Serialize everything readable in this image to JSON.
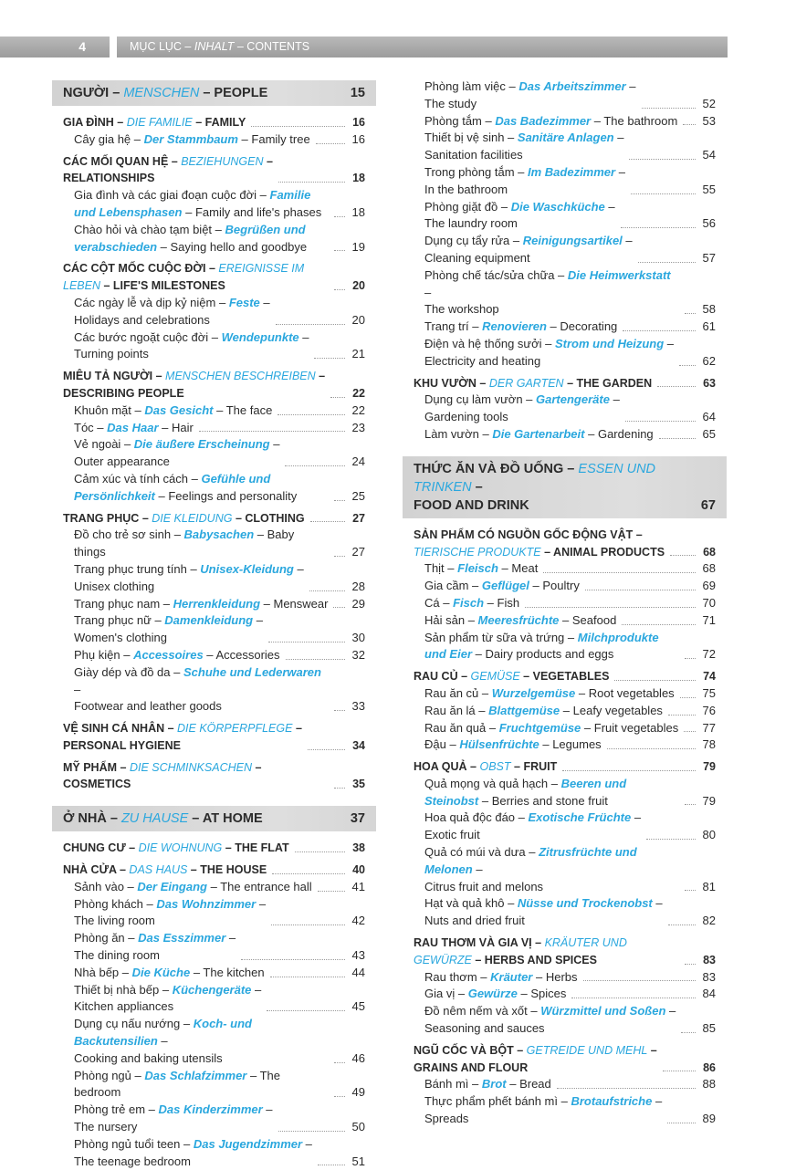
{
  "header": {
    "page_number": "4",
    "title_vi": "MỤC LỤC",
    "title_de": "INHALT",
    "title_en": "CONTENTS"
  },
  "colors": {
    "accent": "#2aa7de",
    "band": "#d6d6d6",
    "topbar": "#a8a8a8"
  },
  "columns": [
    {
      "entries": [
        {
          "kind": "section",
          "vi": "NGƯỜI",
          "de": "MENSCHEN",
          "en": "PEOPLE",
          "page": "15"
        },
        {
          "kind": "cat",
          "vi": "GIA ĐÌNH",
          "de": "DIE FAMILIE",
          "en": "FAMILY",
          "page": "16"
        },
        {
          "kind": "sub",
          "vi": "Cây gia hệ",
          "de": "Der Stammbaum",
          "en": "Family tree",
          "page": "16"
        },
        {
          "kind": "cat",
          "vi": "CÁC MỐI QUAN HỆ",
          "de": "BEZIEHUNGEN",
          "en": "RELATIONSHIPS",
          "page": "18"
        },
        {
          "kind": "sub",
          "vi": "Gia đình và các giai đoạn cuộc đời",
          "de": "Familie und Lebensphasen",
          "en": "Family and life's phases",
          "page": "18"
        },
        {
          "kind": "sub",
          "vi": "Chào hỏi và chào tạm biệt",
          "de": "Begrüßen und verabschieden",
          "en": "Saying hello and goodbye",
          "page": "19"
        },
        {
          "kind": "cat",
          "vi": "CÁC CỘT MỐC CUỘC ĐỜI",
          "de": "EREIGNISSE IM LEBEN",
          "en": "LIFE'S MILESTONES",
          "page": "20"
        },
        {
          "kind": "sub",
          "vi": "Các ngày lễ và dịp kỷ niệm",
          "de": "Feste",
          "en": "Holidays and celebrations",
          "page": "20"
        },
        {
          "kind": "sub",
          "vi": "Các bước ngoặt cuộc đời",
          "de": "Wendepunkte",
          "en": "Turning points",
          "page": "21"
        },
        {
          "kind": "cat",
          "vi": "MIÊU TẢ NGƯỜI",
          "de": "MENSCHEN BESCHREIBEN",
          "en": "DESCRIBING PEOPLE",
          "page": "22"
        },
        {
          "kind": "sub",
          "vi": "Khuôn mặt",
          "de": "Das Gesicht",
          "en": "The face",
          "page": "22"
        },
        {
          "kind": "sub",
          "vi": "Tóc",
          "de": "Das Haar",
          "en": "Hair",
          "page": "23"
        },
        {
          "kind": "sub",
          "vi": "Vẻ ngoài",
          "de": "Die äußere Erscheinung",
          "en": "Outer appearance",
          "page": "24"
        },
        {
          "kind": "sub",
          "vi": "Cảm xúc và tính cách",
          "de": "Gefühle und Persönlichkeit",
          "en": "Feelings and personality",
          "page": "25"
        },
        {
          "kind": "cat",
          "vi": "TRANG PHỤC",
          "de": "DIE KLEIDUNG",
          "en": "CLOTHING",
          "page": "27"
        },
        {
          "kind": "sub",
          "vi": "Đồ cho trẻ sơ sinh",
          "de": "Babysachen",
          "en": "Baby things",
          "page": "27"
        },
        {
          "kind": "sub",
          "vi": "Trang phục trung tính",
          "de": "Unisex-Kleidung",
          "en": "Unisex clothing",
          "page": "28"
        },
        {
          "kind": "sub",
          "vi": "Trang phục nam",
          "de": "Herrenkleidung",
          "en": "Menswear",
          "page": "29"
        },
        {
          "kind": "sub",
          "vi": "Trang phục nữ",
          "de": "Damenkleidung",
          "en": "Women's clothing",
          "page": "30"
        },
        {
          "kind": "sub",
          "vi": "Phụ kiện",
          "de": "Accessoires",
          "en": "Accessories",
          "page": "32"
        },
        {
          "kind": "sub",
          "vi": "Giày dép và đồ da",
          "de": "Schuhe und Lederwaren",
          "en": "Footwear and leather goods",
          "page": "33"
        },
        {
          "kind": "cat",
          "vi": "VỆ SINH CÁ NHÂN",
          "de": "DIE KÖRPERPFLEGE",
          "en": "PERSONAL HYGIENE",
          "page": "34"
        },
        {
          "kind": "cat",
          "vi": "MỸ PHẨM",
          "de": "DIE SCHMINKSACHEN",
          "en": "COSMETICS",
          "page": "35"
        },
        {
          "kind": "section",
          "vi": "Ở NHÀ",
          "de": "ZU HAUSE",
          "en": "AT HOME",
          "page": "37"
        },
        {
          "kind": "cat",
          "vi": "CHUNG CƯ",
          "de": "DIE WOHNUNG",
          "en": "THE FLAT",
          "page": "38"
        },
        {
          "kind": "cat",
          "vi": "NHÀ CỬA",
          "de": "DAS HAUS",
          "en": "THE HOUSE",
          "page": "40"
        },
        {
          "kind": "sub",
          "vi": "Sảnh vào",
          "de": "Der Eingang",
          "en": "The entrance hall",
          "page": "41"
        },
        {
          "kind": "sub",
          "vi": "Phòng khách",
          "de": "Das Wohnzimmer",
          "en": "The living room",
          "page": "42"
        },
        {
          "kind": "sub",
          "vi": "Phòng ăn",
          "de": "Das Esszimmer",
          "en": "The dining room",
          "page": "43"
        },
        {
          "kind": "sub",
          "vi": "Nhà bếp",
          "de": "Die Küche",
          "en": "The kitchen",
          "page": "44"
        },
        {
          "kind": "sub",
          "vi": "Thiết bị nhà bếp",
          "de": "Küchengeräte",
          "en": "Kitchen appliances",
          "page": "45"
        },
        {
          "kind": "sub",
          "vi": "Dụng cụ nấu nướng",
          "de": "Koch- und Backutensilien",
          "en": "Cooking and baking utensils",
          "page": "46"
        },
        {
          "kind": "sub",
          "vi": "Phòng ngủ",
          "de": "Das Schlafzimmer",
          "en": "The bedroom",
          "page": "49"
        },
        {
          "kind": "sub",
          "vi": "Phòng trẻ em",
          "de": "Das Kinderzimmer",
          "en": "The nursery",
          "page": "50"
        },
        {
          "kind": "sub",
          "vi": "Phòng ngủ tuổi teen",
          "de": "Das Jugendzimmer",
          "en": "The teenage bedroom",
          "page": "51"
        }
      ]
    },
    {
      "entries": [
        {
          "kind": "sub",
          "vi": "Phòng làm việc",
          "de": "Das Arbeitszimmer",
          "en": "The study",
          "page": "52"
        },
        {
          "kind": "sub",
          "vi": "Phòng tắm",
          "de": "Das Badezimmer",
          "en": "The bathroom",
          "page": "53"
        },
        {
          "kind": "sub",
          "vi": "Thiết bị vệ sinh",
          "de": "Sanitäre Anlagen",
          "en": "Sanitation facilities",
          "page": "54"
        },
        {
          "kind": "sub",
          "vi": "Trong phòng tắm",
          "de": "Im Badezimmer",
          "en": "In the bathroom",
          "page": "55"
        },
        {
          "kind": "sub",
          "vi": "Phòng giặt đồ",
          "de": "Die Waschküche",
          "en": "The laundry room",
          "page": "56"
        },
        {
          "kind": "sub",
          "vi": "Dụng cụ tẩy rửa",
          "de": "Reinigungsartikel",
          "en": "Cleaning equipment",
          "page": "57"
        },
        {
          "kind": "sub",
          "vi": "Phòng chế tác/sửa chữa",
          "de": "Die Heimwerkstatt",
          "en": "The workshop",
          "page": "58"
        },
        {
          "kind": "sub",
          "vi": "Trang trí",
          "de": "Renovieren",
          "en": "Decorating",
          "page": "61"
        },
        {
          "kind": "sub",
          "vi": "Điện và hệ thống sưởi",
          "de": "Strom und Heizung",
          "en": "Electricity and heating",
          "page": "62"
        },
        {
          "kind": "cat",
          "vi": "KHU VƯỜN",
          "de": "DER GARTEN",
          "en": "THE GARDEN",
          "page": "63"
        },
        {
          "kind": "sub",
          "vi": "Dụng cụ làm vườn",
          "de": "Gartengeräte",
          "en": "Gardening tools",
          "page": "64"
        },
        {
          "kind": "sub",
          "vi": "Làm vườn",
          "de": "Die Gartenarbeit",
          "en": "Gardening",
          "page": "65"
        },
        {
          "kind": "section",
          "vi": "THỨC ĂN VÀ ĐỒ UỐNG",
          "de": "ESSEN UND TRINKEN",
          "en": "FOOD AND DRINK",
          "page": "67"
        },
        {
          "kind": "cat",
          "vi": "SẢN PHẨM CÓ NGUỒN GỐC ĐỘNG VẬT",
          "de": "TIERISCHE PRODUKTE",
          "en": "ANIMAL PRODUCTS",
          "page": "68"
        },
        {
          "kind": "sub",
          "vi": "Thịt",
          "de": "Fleisch",
          "en": "Meat",
          "page": "68"
        },
        {
          "kind": "sub",
          "vi": "Gia cầm",
          "de": "Geflügel",
          "en": "Poultry",
          "page": "69"
        },
        {
          "kind": "sub",
          "vi": "Cá",
          "de": "Fisch",
          "en": "Fish",
          "page": "70"
        },
        {
          "kind": "sub",
          "vi": "Hải sản",
          "de": "Meeresfrüchte",
          "en": "Seafood",
          "page": "71"
        },
        {
          "kind": "sub",
          "vi": "Sản phẩm từ sữa và trứng",
          "de": "Milchprodukte und Eier",
          "en": "Dairy products and eggs",
          "page": "72"
        },
        {
          "kind": "cat",
          "vi": "RAU CỦ",
          "de": "GEMÜSE",
          "en": "VEGETABLES",
          "page": "74"
        },
        {
          "kind": "sub",
          "vi": "Rau ăn củ",
          "de": "Wurzelgemüse",
          "en": "Root vegetables",
          "page": "75"
        },
        {
          "kind": "sub",
          "vi": "Rau ăn lá",
          "de": "Blattgemüse",
          "en": "Leafy vegetables",
          "page": "76"
        },
        {
          "kind": "sub",
          "vi": "Rau ăn quả",
          "de": "Fruchtgemüse",
          "en": "Fruit vegetables",
          "page": "77"
        },
        {
          "kind": "sub",
          "vi": "Đậu",
          "de": "Hülsenfrüchte",
          "en": "Legumes",
          "page": "78"
        },
        {
          "kind": "cat",
          "vi": "HOA QUẢ",
          "de": "OBST",
          "en": "FRUIT",
          "page": "79"
        },
        {
          "kind": "sub",
          "vi": "Quả mọng và quả hạch",
          "de": "Beeren und Steinobst",
          "en": "Berries and stone fruit",
          "page": "79"
        },
        {
          "kind": "sub",
          "vi": "Hoa quả độc đáo",
          "de": "Exotische Früchte",
          "en": "Exotic fruit",
          "page": "80"
        },
        {
          "kind": "sub",
          "vi": "Quả có múi và dưa",
          "de": "Zitrusfrüchte und Melonen",
          "en": "Citrus fruit and melons",
          "page": "81"
        },
        {
          "kind": "sub",
          "vi": "Hạt và quả khô",
          "de": "Nüsse und Trockenobst",
          "en": "Nuts and dried fruit",
          "page": "82"
        },
        {
          "kind": "cat",
          "vi": "RAU THƠM VÀ GIA VỊ",
          "de": "KRÄUTER UND GEWÜRZE",
          "en": "HERBS AND SPICES",
          "page": "83"
        },
        {
          "kind": "sub",
          "vi": "Rau thơm",
          "de": "Kräuter",
          "en": "Herbs",
          "page": "83"
        },
        {
          "kind": "sub",
          "vi": "Gia vị",
          "de": "Gewürze",
          "en": "Spices",
          "page": "84"
        },
        {
          "kind": "sub",
          "vi": "Đồ nêm nếm và xốt",
          "de": "Würzmittel und Soßen",
          "en": "Seasoning and sauces",
          "page": "85"
        },
        {
          "kind": "cat",
          "vi": "NGŨ CỐC VÀ BỘT",
          "de": "GETREIDE UND MEHL",
          "en": "GRAINS AND FLOUR",
          "page": "86"
        },
        {
          "kind": "sub",
          "vi": "Bánh mì",
          "de": "Brot",
          "en": "Bread",
          "page": "88"
        },
        {
          "kind": "sub",
          "vi": "Thực phẩm phết bánh mì",
          "de": "Brotaufstriche",
          "en": "Spreads",
          "page": "89"
        }
      ]
    }
  ]
}
